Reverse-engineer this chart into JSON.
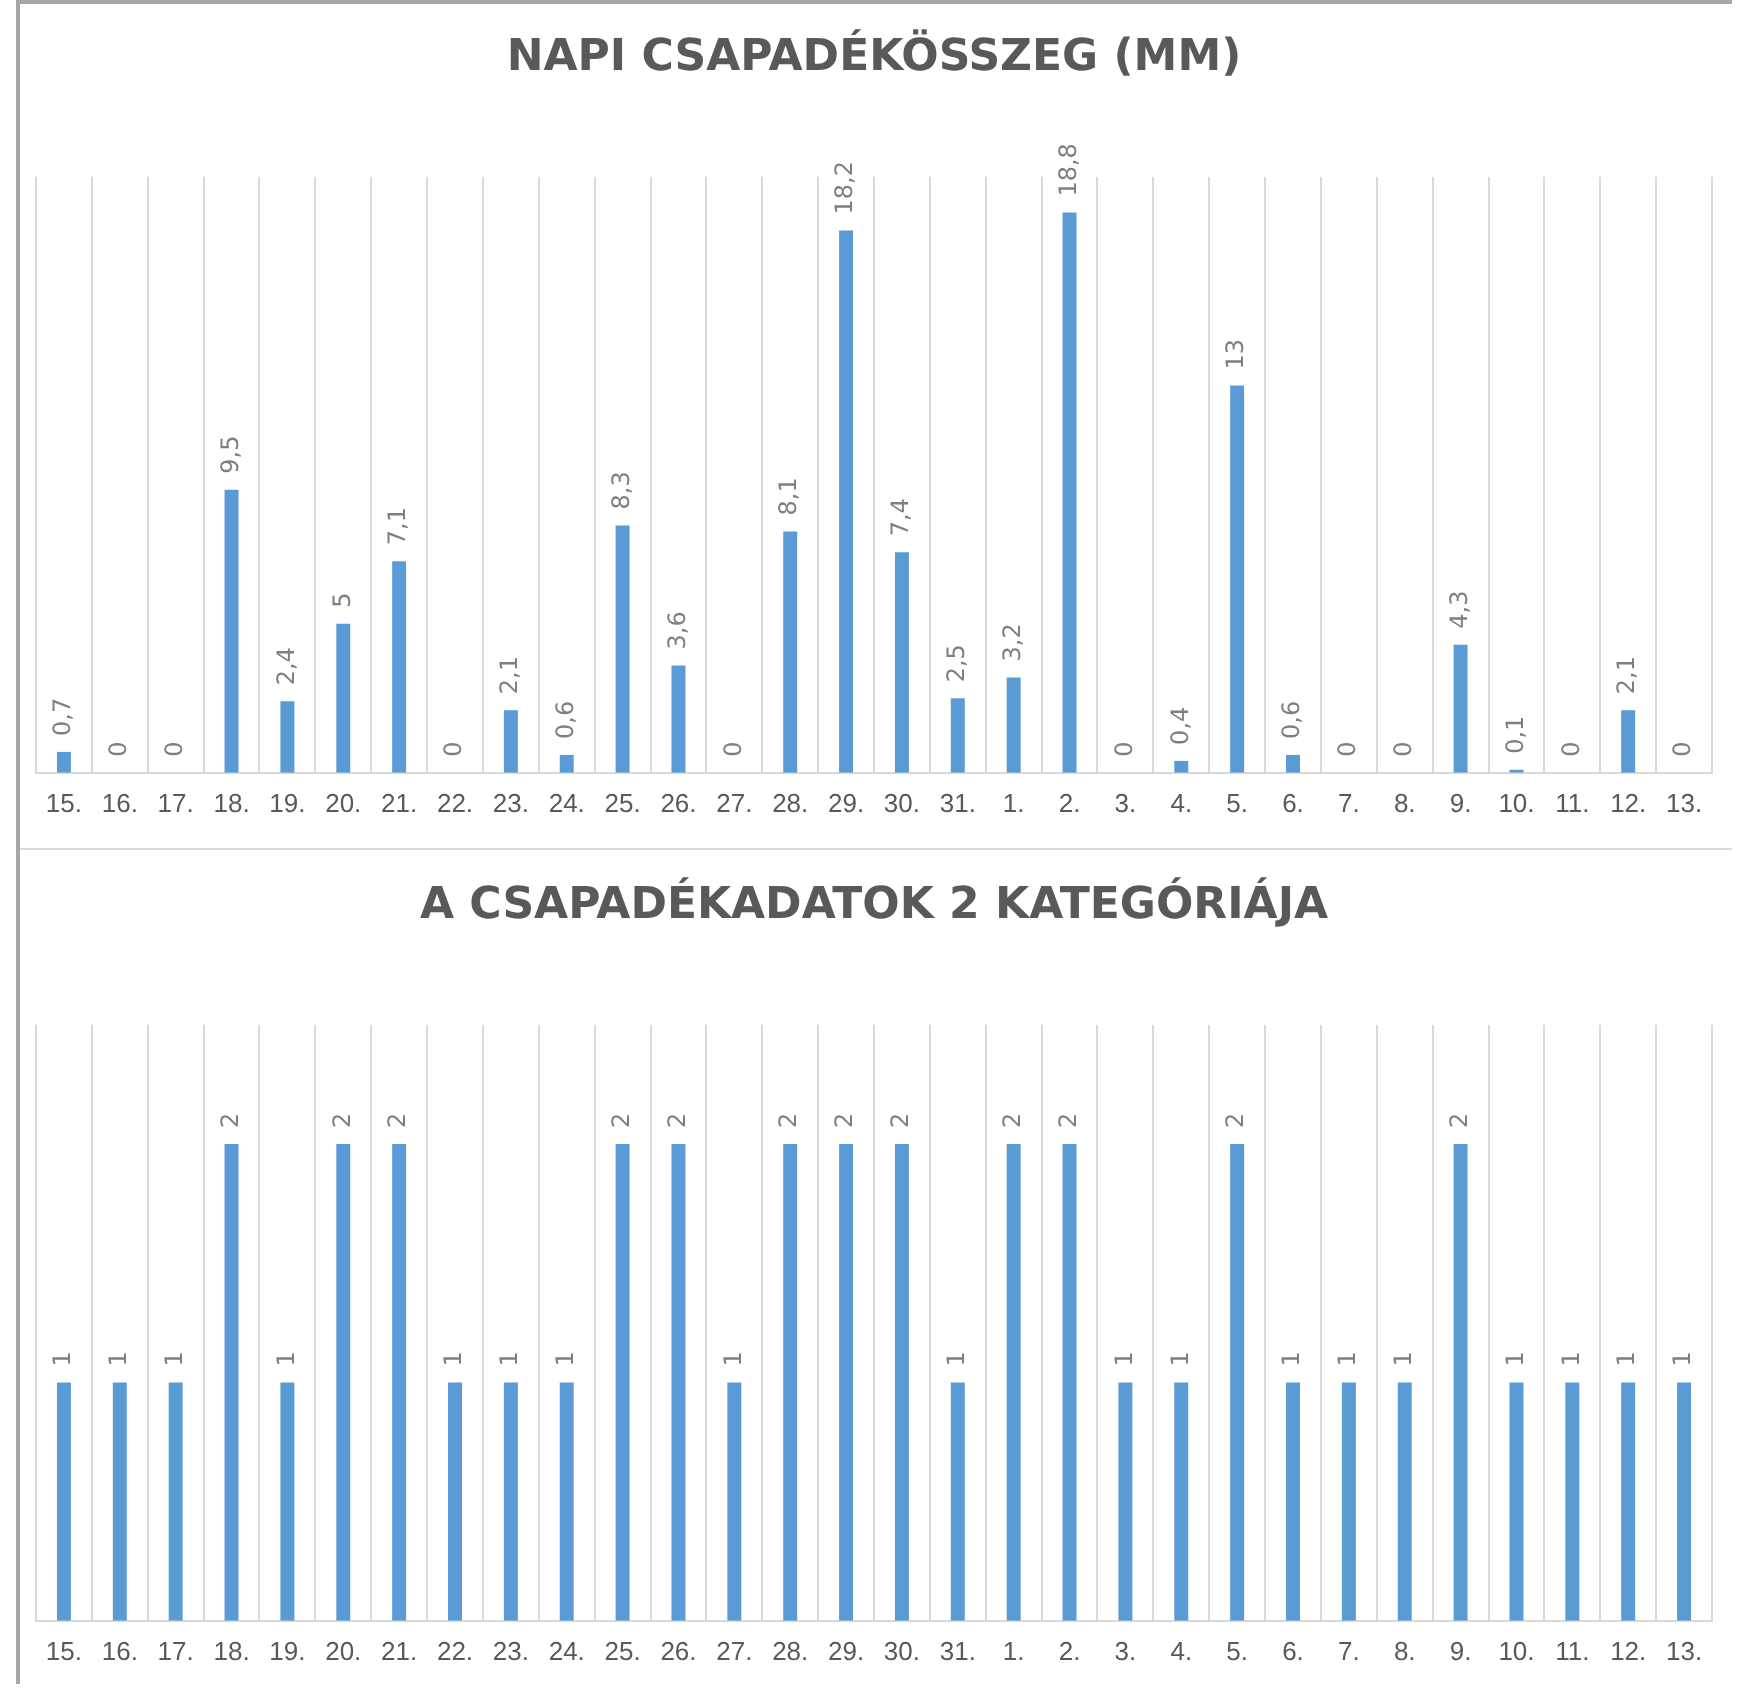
{
  "chart_data": [
    {
      "type": "bar",
      "title": "NAPI CSAPADÉKÖSSZEG (MM)",
      "categories": [
        "15.",
        "16.",
        "17.",
        "18.",
        "19.",
        "20.",
        "21.",
        "22.",
        "23.",
        "24.",
        "25.",
        "26.",
        "27.",
        "28.",
        "29.",
        "30.",
        "31.",
        "1.",
        "2.",
        "3.",
        "4.",
        "5.",
        "6.",
        "7.",
        "8.",
        "9.",
        "10.",
        "11.",
        "12.",
        "13."
      ],
      "values": [
        0.7,
        0,
        0,
        9.5,
        2.4,
        5,
        7.1,
        0,
        2.1,
        0.6,
        8.3,
        3.6,
        0,
        8.1,
        18.2,
        7.4,
        2.5,
        3.2,
        18.8,
        0,
        0.4,
        13,
        0.6,
        0,
        0,
        4.3,
        0.1,
        0,
        2.1,
        0
      ],
      "value_labels": [
        "0,7",
        "0",
        "0",
        "9,5",
        "2,4",
        "5",
        "7,1",
        "0",
        "2,1",
        "0,6",
        "8,3",
        "3,6",
        "0",
        "8,1",
        "18,2",
        "7,4",
        "2,5",
        "3,2",
        "18,8",
        "0",
        "0,4",
        "13",
        "0,6",
        "0",
        "0",
        "4,3",
        "0,1",
        "0",
        "2,1",
        "0"
      ],
      "color": "#5b9bd5",
      "grid": "x",
      "tick_labels": "x"
    },
    {
      "type": "bar",
      "title": "A CSAPADÉKADATOK 2 KATEGÓRIÁJA",
      "categories": [
        "15.",
        "16.",
        "17.",
        "18.",
        "19.",
        "20.",
        "21.",
        "22.",
        "23.",
        "24.",
        "25.",
        "26.",
        "27.",
        "28.",
        "29.",
        "30.",
        "31.",
        "1.",
        "2.",
        "3.",
        "4.",
        "5.",
        "6.",
        "7.",
        "8.",
        "9.",
        "10.",
        "11.",
        "12.",
        "13."
      ],
      "values": [
        1,
        1,
        1,
        2,
        1,
        2,
        2,
        1,
        1,
        1,
        2,
        2,
        1,
        2,
        2,
        2,
        1,
        2,
        2,
        1,
        1,
        2,
        1,
        1,
        1,
        2,
        1,
        1,
        1,
        1
      ],
      "data_labels": true,
      "color": "#5b9bd5",
      "grid": "x",
      "tick_labels": "x"
    }
  ]
}
